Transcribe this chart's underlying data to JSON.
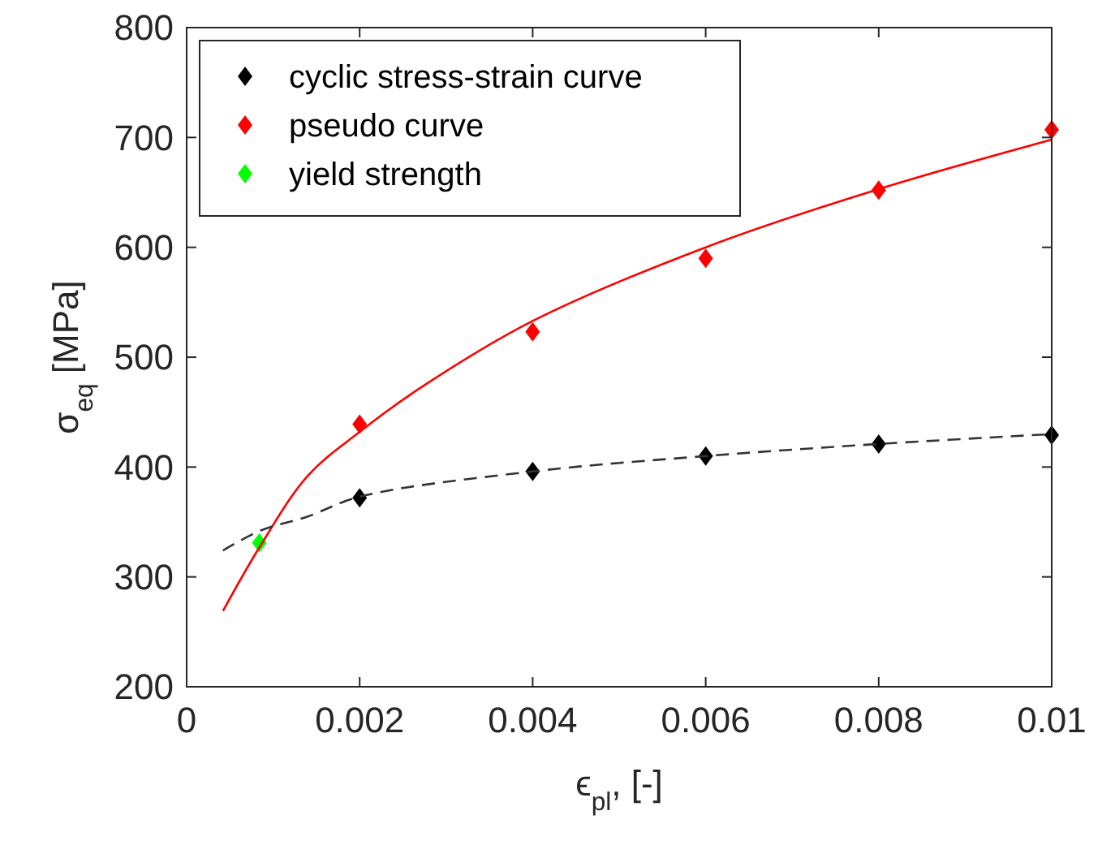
{
  "chart_data": {
    "type": "scatter",
    "xlabel": "ϵ$_{pl}$, [-]",
    "ylabel": "σ$_{eq}$ [MPa]",
    "xlim": [
      0,
      0.01
    ],
    "xticks": [
      0,
      0.002,
      0.004,
      0.006,
      0.008,
      0.01
    ],
    "ylim": [
      200,
      800
    ],
    "yticks": [
      200,
      300,
      400,
      500,
      600,
      700,
      800
    ],
    "grid": false,
    "legend": "top left",
    "marker": "diamond",
    "series": [
      {
        "name": "cyclic stress-strain curve",
        "color": "#000000",
        "x": [
          0.002,
          0.004,
          0.006,
          0.008,
          0.01
        ],
        "values": [
          372,
          396,
          410,
          421,
          429
        ]
      },
      {
        "name": "pseudo curve",
        "color": "#ff0000",
        "x": [
          0.002,
          0.004,
          0.006,
          0.008,
          0.01
        ],
        "values": [
          439,
          523,
          590,
          652,
          707
        ]
      },
      {
        "name": "yield strength",
        "color": "#00ff00",
        "x": [
          0.00084
        ],
        "values": [
          331
        ]
      },
      {
        "color": "#ff0000",
        "type": "line",
        "line_style": "solid",
        "marker": "none",
        "x": [
          0.00042,
          0.00085,
          0.0014,
          0.002,
          0.0027,
          0.004,
          0.006,
          0.008,
          0.01
        ],
        "values": [
          269,
          328,
          392,
          432,
          472,
          533,
          600,
          653,
          698
        ]
      },
      {
        "color": "#333333",
        "type": "line",
        "line_style": "dashed",
        "marker": "none",
        "x": [
          0.00042,
          0.00085,
          0.0014,
          0.002,
          0.004,
          0.006,
          0.008,
          0.01
        ],
        "values": [
          324,
          342,
          355,
          373,
          396,
          410,
          421,
          430
        ]
      }
    ]
  }
}
